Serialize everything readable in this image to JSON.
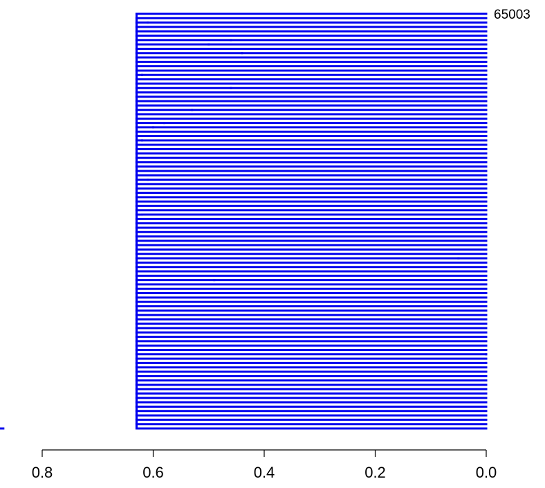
{
  "chart_data": {
    "type": "dendrogram",
    "orientation": "horizontal",
    "line_color": "#0000ee",
    "x_axis": {
      "reversed": true,
      "ticks": [
        0.8,
        0.6,
        0.4,
        0.2,
        0.0
      ],
      "tick_labels": [
        "0.8",
        "0.6",
        "0.4",
        "0.2",
        "0.0"
      ]
    },
    "leaves": [
      {
        "label": "65003",
        "height": 0.0
      }
    ],
    "merge_heights_sample": [
      0.87,
      0.86,
      0.81,
      0.78,
      0.77,
      0.76,
      0.75,
      0.74,
      0.73,
      0.72,
      0.71,
      0.7,
      0.69,
      0.68,
      0.67,
      0.66,
      0.65,
      0.64,
      0.63,
      0.62,
      0.61,
      0.6,
      0.55,
      0.52,
      0.49,
      0.46,
      0.44,
      0.05
    ]
  }
}
